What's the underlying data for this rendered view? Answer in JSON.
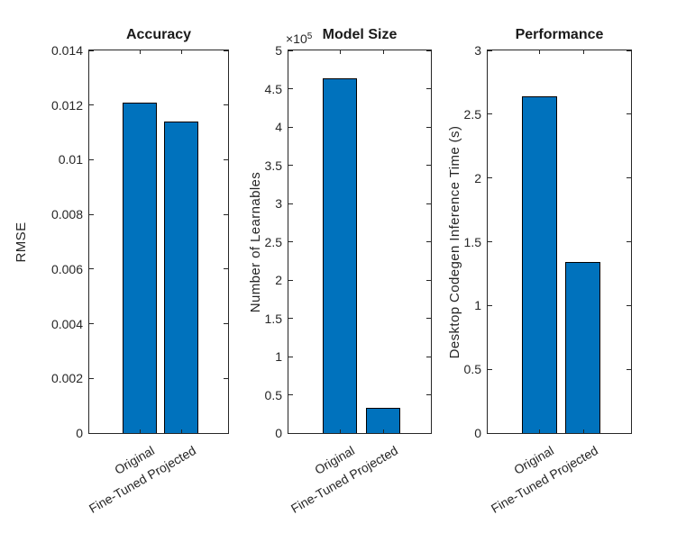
{
  "colors": {
    "background": "#FFFFFF",
    "bar_fill": "#0072BD",
    "bar_edge": "#000000",
    "axis_line": "#262626",
    "tick_text": "#262626",
    "title_text": "#1A1A1A"
  },
  "chart_data": [
    {
      "type": "bar",
      "title": "Accuracy",
      "ylabel": "RMSE",
      "xlabel": "",
      "categories": [
        "Original",
        "Fine-Tuned Projected"
      ],
      "values": [
        0.0121,
        0.0114
      ],
      "ylim": [
        0,
        0.014
      ],
      "ytick_values": [
        0,
        0.002,
        0.004,
        0.006,
        0.008,
        0.01,
        0.012,
        0.014
      ],
      "ytick_labels": [
        "0",
        "0.002",
        "0.004",
        "0.006",
        "0.008",
        "0.01",
        "0.012",
        "0.014"
      ],
      "grid_on": false,
      "legend": null
    },
    {
      "type": "bar",
      "title": "Model Size",
      "ylabel": "Number of Learnables",
      "xlabel": "",
      "categories": [
        "Original",
        "Fine-Tuned Projected"
      ],
      "values": [
        464000,
        33000
      ],
      "ylim": [
        0,
        500000
      ],
      "ytick_values": [
        0,
        50000,
        100000,
        150000,
        200000,
        250000,
        300000,
        350000,
        400000,
        450000,
        500000
      ],
      "ytick_labels": [
        "0",
        "0.5",
        "1",
        "1.5",
        "2",
        "2.5",
        "3",
        "3.5",
        "4",
        "4.5",
        "5"
      ],
      "exponent": {
        "prefix": "×10",
        "power": "5"
      },
      "grid_on": false,
      "legend": null
    },
    {
      "type": "bar",
      "title": "Performance",
      "ylabel": "Desktop Codegen Inference Time (s)",
      "xlabel": "",
      "categories": [
        "Original",
        "Fine-Tuned Projected"
      ],
      "values": [
        2.64,
        1.34
      ],
      "ylim": [
        0,
        3
      ],
      "ytick_values": [
        0,
        0.5,
        1,
        1.5,
        2,
        2.5,
        3
      ],
      "ytick_labels": [
        "0",
        "0.5",
        "1",
        "1.5",
        "2",
        "2.5",
        "3"
      ],
      "grid_on": false,
      "legend": null
    }
  ]
}
